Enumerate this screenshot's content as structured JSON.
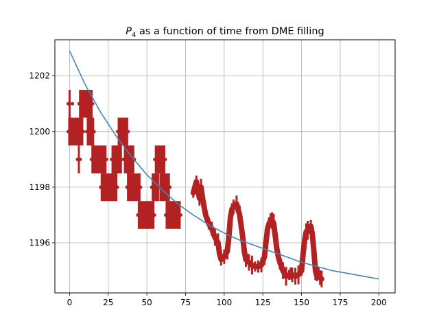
{
  "chart_data": {
    "type": "scatter",
    "title_prefix": "P",
    "title_subscript": "4",
    "title_suffix": " as a function of time from DME filling",
    "xlabel": "",
    "ylabel": "",
    "xlim": [
      -9.5,
      210.5
    ],
    "ylim": [
      1194.2,
      1203.3
    ],
    "xticks": [
      0,
      25,
      50,
      75,
      100,
      125,
      150,
      175,
      200
    ],
    "yticks": [
      1196,
      1198,
      1200,
      1202
    ],
    "grid": true,
    "legend": "none",
    "colors": {
      "fit": "#4682b4",
      "data": "#b22222",
      "grid": "#b0b0b0"
    },
    "fit_curve": {
      "x": [
        0,
        10,
        20,
        30,
        40,
        50,
        60,
        70,
        80,
        90,
        100,
        110,
        120,
        130,
        140,
        150,
        160,
        170,
        180,
        190,
        200
      ],
      "y": [
        1202.9,
        1201.7,
        1200.7,
        1199.85,
        1199.1,
        1198.45,
        1197.9,
        1197.4,
        1197.0,
        1196.65,
        1196.35,
        1196.1,
        1195.9,
        1195.7,
        1195.5,
        1195.3,
        1195.15,
        1195.0,
        1194.9,
        1194.8,
        1194.7
      ]
    },
    "measurements": {
      "error_half_width": 0.5,
      "steps": [
        {
          "x0": 0,
          "x1": 1,
          "y": 1201
        },
        {
          "x0": 0,
          "x1": 8,
          "y": 1200
        },
        {
          "x0": 6,
          "x1": 6,
          "y": 1199
        },
        {
          "x0": 7,
          "x1": 14,
          "y": 1201
        },
        {
          "x0": 12,
          "x1": 15,
          "y": 1200
        },
        {
          "x0": 15,
          "x1": 23,
          "y": 1199
        },
        {
          "x0": 21,
          "x1": 30,
          "y": 1198
        },
        {
          "x0": 28,
          "x1": 30,
          "y": 1199
        },
        {
          "x0": 31,
          "x1": 33,
          "y": 1199
        },
        {
          "x0": 32,
          "x1": 37,
          "y": 1200
        },
        {
          "x0": 36,
          "x1": 41,
          "y": 1199
        },
        {
          "x0": 38,
          "x1": 45,
          "y": 1198
        },
        {
          "x0": 45,
          "x1": 54,
          "y": 1197
        },
        {
          "x0": 54,
          "x1": 57,
          "y": 1198
        },
        {
          "x0": 56,
          "x1": 61,
          "y": 1199
        },
        {
          "x0": 59,
          "x1": 64,
          "y": 1198
        },
        {
          "x0": 63,
          "x1": 71,
          "y": 1197
        }
      ],
      "continuous": {
        "x": [
          80,
          82,
          84,
          85,
          86,
          88,
          90,
          92,
          94,
          96,
          97,
          98,
          100,
          102,
          103,
          104,
          105,
          106,
          108,
          110,
          112,
          113,
          114,
          116,
          118,
          120,
          122,
          124,
          126,
          127,
          128,
          129,
          130,
          131,
          132,
          134,
          135,
          136,
          138,
          140,
          142,
          143,
          144,
          146,
          148,
          150,
          151,
          152,
          153,
          154,
          155,
          156,
          157,
          158,
          159,
          160,
          161,
          162,
          163
        ],
        "y": [
          1197.8,
          1198.2,
          1197.6,
          1198.0,
          1197.6,
          1197.0,
          1196.7,
          1196.5,
          1196.2,
          1196.0,
          1195.6,
          1195.4,
          1195.5,
          1195.7,
          1196.2,
          1196.9,
          1197.2,
          1197.3,
          1197.4,
          1197.0,
          1196.2,
          1195.7,
          1195.4,
          1195.3,
          1195.2,
          1195.15,
          1195.15,
          1195.2,
          1195.5,
          1196.0,
          1196.5,
          1196.7,
          1196.8,
          1196.8,
          1196.7,
          1195.8,
          1195.5,
          1195.3,
          1195.0,
          1194.8,
          1194.85,
          1194.9,
          1194.85,
          1194.8,
          1194.85,
          1195.0,
          1195.6,
          1196.1,
          1196.4,
          1196.45,
          1196.5,
          1196.6,
          1196.3,
          1195.7,
          1195.0,
          1194.8,
          1194.9,
          1194.75,
          1194.7
        ]
      }
    }
  }
}
